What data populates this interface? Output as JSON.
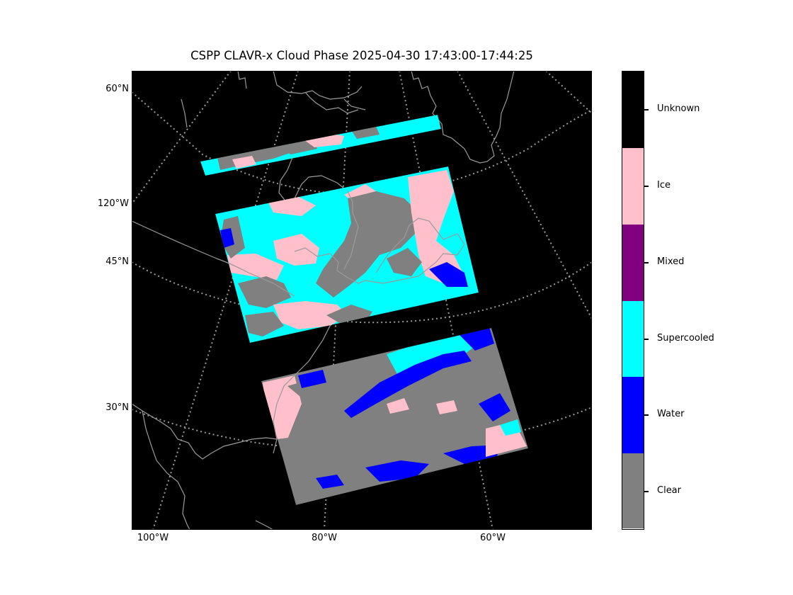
{
  "figure": {
    "title": "CSPP CLAVR-x Cloud Phase 2025-04-30 17:43:00-17:44:25"
  },
  "map": {
    "lat_labels": [
      "60°N",
      "120°W",
      "45°N",
      "30°N"
    ],
    "lon_labels": [
      "100°W",
      "80°W",
      "60°W"
    ],
    "background_color": "#000000",
    "gridline_color": "#999999",
    "coastline_color": "#9a9a9a"
  },
  "colorbar": {
    "categories": [
      {
        "label": "Unknown",
        "color": "#000000"
      },
      {
        "label": "Ice",
        "color": "#ffc0cb"
      },
      {
        "label": "Mixed",
        "color": "#800080"
      },
      {
        "label": "Supercooled",
        "color": "#00ffff"
      },
      {
        "label": "Water",
        "color": "#0000ff"
      },
      {
        "label": "Clear",
        "color": "#808080"
      }
    ]
  },
  "swaths": [
    {
      "name": "north-swath",
      "dominant_phases": [
        "Supercooled",
        "Ice",
        "Clear"
      ]
    },
    {
      "name": "middle-swath",
      "dominant_phases": [
        "Supercooled",
        "Clear",
        "Ice",
        "Water"
      ]
    },
    {
      "name": "south-swath",
      "dominant_phases": [
        "Clear",
        "Water",
        "Supercooled",
        "Ice"
      ]
    }
  ]
}
